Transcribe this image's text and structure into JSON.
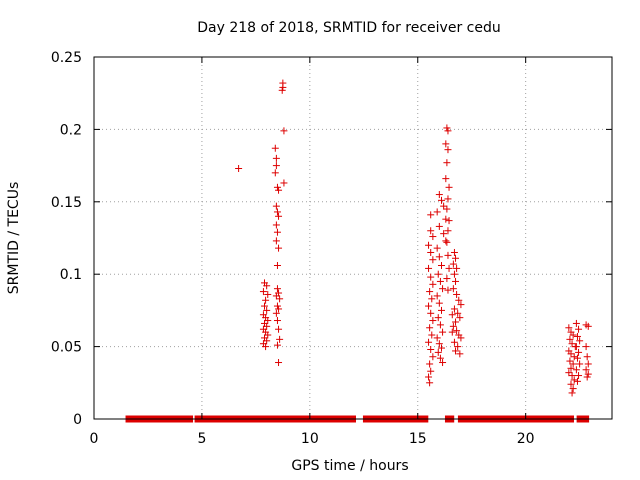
{
  "chart_data": {
    "type": "scatter",
    "title": "Day 218 of 2018, SRMTID for receiver cedu",
    "xlabel": "GPS time / hours",
    "ylabel": "SRMTID / TECUs",
    "xlim": [
      0,
      24
    ],
    "ylim": [
      0,
      0.25
    ],
    "grid": true,
    "xticks": [
      0,
      5,
      10,
      15,
      20
    ],
    "xtick_labels": [
      "0",
      "5",
      "10",
      "15",
      "20"
    ],
    "yticks": [
      0,
      0.05,
      0.1,
      0.15,
      0.2,
      0.25
    ],
    "ytick_labels": [
      "0",
      "0.05",
      "0.1",
      "0.15",
      "0.2",
      "0.25"
    ],
    "marker": "+",
    "color": "#dd0000",
    "series": [
      {
        "name": "SRMTID",
        "zero_segments": [
          [
            1.6,
            4.45
          ],
          [
            4.8,
            7.95
          ],
          [
            8.1,
            8.4
          ],
          [
            8.65,
            8.8
          ],
          [
            8.9,
            12.0
          ],
          [
            12.6,
            12.7
          ],
          [
            12.9,
            15.35
          ],
          [
            16.4,
            16.55
          ],
          [
            17.0,
            22.1
          ],
          [
            22.5,
            22.8
          ]
        ],
        "points": [
          [
            6.7,
            0.173
          ],
          [
            8.75,
            0.232
          ],
          [
            8.75,
            0.229
          ],
          [
            8.72,
            0.227
          ],
          [
            8.8,
            0.199
          ],
          [
            8.8,
            0.163
          ],
          [
            8.4,
            0.187
          ],
          [
            8.45,
            0.18
          ],
          [
            8.45,
            0.175
          ],
          [
            8.4,
            0.17
          ],
          [
            8.5,
            0.16
          ],
          [
            8.55,
            0.158
          ],
          [
            8.45,
            0.147
          ],
          [
            8.5,
            0.143
          ],
          [
            8.55,
            0.14
          ],
          [
            8.45,
            0.134
          ],
          [
            8.5,
            0.129
          ],
          [
            8.45,
            0.123
          ],
          [
            8.55,
            0.118
          ],
          [
            8.5,
            0.106
          ],
          [
            7.9,
            0.094
          ],
          [
            8.0,
            0.092
          ],
          [
            7.85,
            0.088
          ],
          [
            8.05,
            0.086
          ],
          [
            7.95,
            0.082
          ],
          [
            7.9,
            0.078
          ],
          [
            8.0,
            0.075
          ],
          [
            7.85,
            0.072
          ],
          [
            7.95,
            0.07
          ],
          [
            8.05,
            0.068
          ],
          [
            7.9,
            0.066
          ],
          [
            8.0,
            0.064
          ],
          [
            7.85,
            0.062
          ],
          [
            7.95,
            0.06
          ],
          [
            8.05,
            0.058
          ],
          [
            7.9,
            0.056
          ],
          [
            8.0,
            0.054
          ],
          [
            7.85,
            0.052
          ],
          [
            7.95,
            0.05
          ],
          [
            8.5,
            0.09
          ],
          [
            8.55,
            0.087
          ],
          [
            8.45,
            0.085
          ],
          [
            8.6,
            0.083
          ],
          [
            8.5,
            0.078
          ],
          [
            8.55,
            0.076
          ],
          [
            8.45,
            0.073
          ],
          [
            8.5,
            0.068
          ],
          [
            8.55,
            0.062
          ],
          [
            8.6,
            0.055
          ],
          [
            8.5,
            0.051
          ],
          [
            8.55,
            0.039
          ],
          [
            15.6,
            0.141
          ],
          [
            16.0,
            0.155
          ],
          [
            16.1,
            0.151
          ],
          [
            16.2,
            0.147
          ],
          [
            15.9,
            0.143
          ],
          [
            16.3,
            0.138
          ],
          [
            16.0,
            0.133
          ],
          [
            16.2,
            0.128
          ],
          [
            16.3,
            0.123
          ],
          [
            15.6,
            0.13
          ],
          [
            15.7,
            0.126
          ],
          [
            15.5,
            0.12
          ],
          [
            15.6,
            0.115
          ],
          [
            15.7,
            0.11
          ],
          [
            15.5,
            0.104
          ],
          [
            15.6,
            0.098
          ],
          [
            15.7,
            0.093
          ],
          [
            15.55,
            0.088
          ],
          [
            15.65,
            0.083
          ],
          [
            15.5,
            0.078
          ],
          [
            15.6,
            0.073
          ],
          [
            15.7,
            0.068
          ],
          [
            15.55,
            0.063
          ],
          [
            15.65,
            0.058
          ],
          [
            15.5,
            0.053
          ],
          [
            15.6,
            0.048
          ],
          [
            15.7,
            0.043
          ],
          [
            15.55,
            0.038
          ],
          [
            15.6,
            0.033
          ],
          [
            15.5,
            0.029
          ],
          [
            15.55,
            0.025
          ],
          [
            15.9,
            0.118
          ],
          [
            16.0,
            0.112
          ],
          [
            16.1,
            0.106
          ],
          [
            15.95,
            0.1
          ],
          [
            16.05,
            0.095
          ],
          [
            16.15,
            0.09
          ],
          [
            15.9,
            0.085
          ],
          [
            16.0,
            0.08
          ],
          [
            16.1,
            0.075
          ],
          [
            15.95,
            0.07
          ],
          [
            16.05,
            0.065
          ],
          [
            16.15,
            0.06
          ],
          [
            15.9,
            0.056
          ],
          [
            16.0,
            0.052
          ],
          [
            16.1,
            0.049
          ],
          [
            15.95,
            0.046
          ],
          [
            16.05,
            0.042
          ],
          [
            16.15,
            0.039
          ],
          [
            16.35,
            0.201
          ],
          [
            16.4,
            0.199
          ],
          [
            16.3,
            0.19
          ],
          [
            16.4,
            0.186
          ],
          [
            16.35,
            0.177
          ],
          [
            16.3,
            0.166
          ],
          [
            16.45,
            0.16
          ],
          [
            16.4,
            0.152
          ],
          [
            16.35,
            0.145
          ],
          [
            16.45,
            0.137
          ],
          [
            16.4,
            0.13
          ],
          [
            16.35,
            0.122
          ],
          [
            16.4,
            0.113
          ],
          [
            16.45,
            0.104
          ],
          [
            16.35,
            0.097
          ],
          [
            16.4,
            0.089
          ],
          [
            16.7,
            0.115
          ],
          [
            16.75,
            0.111
          ],
          [
            16.65,
            0.107
          ],
          [
            16.8,
            0.104
          ],
          [
            16.7,
            0.1
          ],
          [
            16.75,
            0.095
          ],
          [
            16.65,
            0.09
          ],
          [
            16.8,
            0.086
          ],
          [
            16.9,
            0.082
          ],
          [
            17.0,
            0.079
          ],
          [
            16.7,
            0.076
          ],
          [
            16.85,
            0.073
          ],
          [
            16.95,
            0.07
          ],
          [
            16.75,
            0.067
          ],
          [
            16.65,
            0.064
          ],
          [
            16.8,
            0.061
          ],
          [
            16.9,
            0.058
          ],
          [
            17.0,
            0.056
          ],
          [
            16.7,
            0.053
          ],
          [
            16.85,
            0.05
          ],
          [
            16.75,
            0.047
          ],
          [
            16.95,
            0.045
          ],
          [
            16.6,
            0.06
          ],
          [
            16.6,
            0.072
          ],
          [
            22.0,
            0.063
          ],
          [
            22.1,
            0.06
          ],
          [
            22.2,
            0.058
          ],
          [
            22.05,
            0.055
          ],
          [
            22.15,
            0.052
          ],
          [
            22.3,
            0.05
          ],
          [
            22.0,
            0.047
          ],
          [
            22.1,
            0.045
          ],
          [
            22.25,
            0.043
          ],
          [
            22.05,
            0.04
          ],
          [
            22.2,
            0.038
          ],
          [
            22.1,
            0.035
          ],
          [
            22.0,
            0.032
          ],
          [
            22.15,
            0.03
          ],
          [
            22.25,
            0.027
          ],
          [
            22.1,
            0.024
          ],
          [
            22.2,
            0.021
          ],
          [
            22.15,
            0.018
          ],
          [
            22.35,
            0.066
          ],
          [
            22.45,
            0.062
          ],
          [
            22.4,
            0.057
          ],
          [
            22.5,
            0.054
          ],
          [
            22.35,
            0.05
          ],
          [
            22.45,
            0.046
          ],
          [
            22.4,
            0.042
          ],
          [
            22.5,
            0.038
          ],
          [
            22.35,
            0.034
          ],
          [
            22.45,
            0.03
          ],
          [
            22.4,
            0.026
          ],
          [
            22.8,
            0.065
          ],
          [
            22.9,
            0.064
          ],
          [
            22.8,
            0.05
          ],
          [
            22.85,
            0.043
          ],
          [
            22.9,
            0.038
          ],
          [
            22.8,
            0.034
          ],
          [
            22.9,
            0.031
          ],
          [
            22.85,
            0.029
          ]
        ]
      }
    ]
  }
}
